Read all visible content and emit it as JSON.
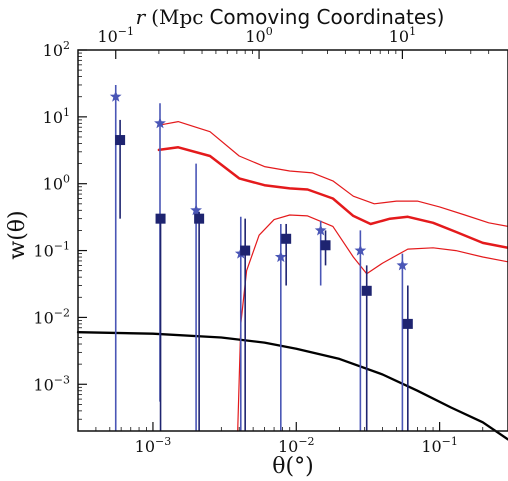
{
  "chart_data": {
    "type": "scatter",
    "title": "",
    "xlabel": "θ(°)",
    "ylabel": "w(θ)",
    "top_axis": {
      "label_parts": [
        "r",
        "(Mpc",
        "Comoving Coordinates)"
      ],
      "ticks": [
        {
          "value": 0.1,
          "base": "10",
          "exp": "−1"
        },
        {
          "value": 1,
          "base": "10",
          "exp": "0"
        },
        {
          "value": 10,
          "base": "10",
          "exp": "1"
        }
      ]
    },
    "x_scale": "log",
    "y_scale": "log",
    "xlim": [
      0.0003,
      0.3
    ],
    "ylim": [
      0.0002,
      100
    ],
    "x_ticks": [
      {
        "value": 0.001,
        "base": "10",
        "exp": "−3"
      },
      {
        "value": 0.01,
        "base": "10",
        "exp": "−2"
      },
      {
        "value": 0.1,
        "base": "10",
        "exp": "−1"
      }
    ],
    "y_ticks": [
      {
        "value": 100,
        "base": "10",
        "exp": "2"
      },
      {
        "value": 10,
        "base": "10",
        "exp": "1"
      },
      {
        "value": 1,
        "base": "10",
        "exp": "0"
      },
      {
        "value": 0.1,
        "base": "10",
        "exp": "−1"
      },
      {
        "value": 0.01,
        "base": "10",
        "exp": "−2"
      },
      {
        "value": 0.001,
        "base": "10",
        "exp": "−3"
      }
    ],
    "grid": false,
    "series": [
      {
        "marker": "star",
        "color": "#4a56b6",
        "points": [
          {
            "x": 0.00055,
            "y": 20,
            "lo": 0.0002,
            "hi": 30
          },
          {
            "x": 0.00112,
            "y": 8,
            "lo": 0.00055,
            "hi": 16
          },
          {
            "x": 0.002,
            "y": 0.4,
            "lo": 0.0002,
            "hi": 2.0
          },
          {
            "x": 0.0041,
            "y": 0.09,
            "lo": 0.0002,
            "hi": 0.32
          },
          {
            "x": 0.0078,
            "y": 0.08,
            "lo": 0.0002,
            "hi": 0.25
          },
          {
            "x": 0.0148,
            "y": 0.2,
            "lo": 0.03,
            "hi": 0.28
          },
          {
            "x": 0.028,
            "y": 0.1,
            "lo": 0.0002,
            "hi": 0.2
          },
          {
            "x": 0.055,
            "y": 0.06,
            "lo": 0.0002,
            "hi": 0.09
          }
        ]
      },
      {
        "marker": "square",
        "color": "#1e2470",
        "points": [
          {
            "x": 0.00059,
            "y": 4.5,
            "lo": 0.3,
            "hi": 9
          },
          {
            "x": 0.00113,
            "y": 0.3,
            "lo": 0.0002,
            "hi": 0.32
          },
          {
            "x": 0.0021,
            "y": 0.3,
            "lo": 0.0002,
            "hi": 0.38
          },
          {
            "x": 0.0044,
            "y": 0.1,
            "lo": 0.0002,
            "hi": 0.3
          },
          {
            "x": 0.0085,
            "y": 0.15,
            "lo": 0.03,
            "hi": 0.25
          },
          {
            "x": 0.016,
            "y": 0.12,
            "lo": 0.06,
            "hi": 0.2
          },
          {
            "x": 0.031,
            "y": 0.025,
            "lo": 0.0002,
            "hi": 0.06
          },
          {
            "x": 0.06,
            "y": 0.008,
            "lo": 0.0002,
            "hi": 0.03
          }
        ]
      }
    ],
    "curves": [
      {
        "style": "model-mean",
        "color": "#e41a1c",
        "width": 2.5,
        "points": [
          [
            0.0011,
            3.2
          ],
          [
            0.0015,
            3.5
          ],
          [
            0.0025,
            2.6
          ],
          [
            0.004,
            1.2
          ],
          [
            0.006,
            0.95
          ],
          [
            0.009,
            0.85
          ],
          [
            0.012,
            0.82
          ],
          [
            0.018,
            0.6
          ],
          [
            0.025,
            0.33
          ],
          [
            0.033,
            0.25
          ],
          [
            0.045,
            0.3
          ],
          [
            0.06,
            0.32
          ],
          [
            0.09,
            0.26
          ],
          [
            0.13,
            0.19
          ],
          [
            0.2,
            0.13
          ],
          [
            0.3,
            0.11
          ]
        ]
      },
      {
        "style": "model-upper",
        "color": "#e41a1c",
        "width": 1.2,
        "points": [
          [
            0.0011,
            7.5
          ],
          [
            0.0015,
            8.5
          ],
          [
            0.0025,
            6.0
          ],
          [
            0.004,
            2.6
          ],
          [
            0.006,
            1.8
          ],
          [
            0.009,
            1.55
          ],
          [
            0.013,
            1.45
          ],
          [
            0.018,
            1.1
          ],
          [
            0.025,
            0.65
          ],
          [
            0.035,
            0.5
          ],
          [
            0.05,
            0.55
          ],
          [
            0.07,
            0.55
          ],
          [
            0.1,
            0.45
          ],
          [
            0.15,
            0.34
          ],
          [
            0.22,
            0.26
          ],
          [
            0.3,
            0.23
          ]
        ]
      },
      {
        "style": "model-lower",
        "color": "#e41a1c",
        "width": 1.2,
        "points": [
          [
            0.0039,
            0.0002
          ],
          [
            0.0041,
            0.008
          ],
          [
            0.0045,
            0.05
          ],
          [
            0.0055,
            0.17
          ],
          [
            0.007,
            0.29
          ],
          [
            0.009,
            0.34
          ],
          [
            0.012,
            0.33
          ],
          [
            0.018,
            0.23
          ],
          [
            0.025,
            0.08
          ],
          [
            0.031,
            0.045
          ],
          [
            0.04,
            0.065
          ],
          [
            0.06,
            0.105
          ],
          [
            0.09,
            0.11
          ],
          [
            0.13,
            0.1
          ],
          [
            0.2,
            0.08
          ],
          [
            0.3,
            0.068
          ]
        ]
      },
      {
        "style": "reference",
        "color": "#000000",
        "width": 2.3,
        "points": [
          [
            0.0003,
            0.006
          ],
          [
            0.001,
            0.0057
          ],
          [
            0.003,
            0.005
          ],
          [
            0.006,
            0.0042
          ],
          [
            0.01,
            0.0034
          ],
          [
            0.02,
            0.0024
          ],
          [
            0.04,
            0.0014
          ],
          [
            0.07,
            0.0008
          ],
          [
            0.12,
            0.00045
          ],
          [
            0.2,
            0.00027
          ],
          [
            0.3,
            0.00015
          ]
        ]
      }
    ]
  }
}
